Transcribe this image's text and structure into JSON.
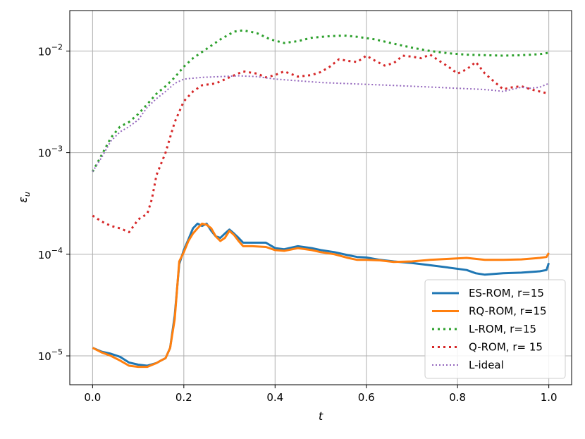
{
  "chart_data": {
    "type": "line",
    "xlabel": "t",
    "ylabel": "ε",
    "ylabel_sub": "u",
    "xlim": [
      -0.05,
      1.05
    ],
    "ylim": [
      5.2e-06,
      0.025
    ],
    "yscale": "log",
    "grid": true,
    "legend_position": "lower-right",
    "x_ticks": [
      {
        "value": 0.0,
        "label": "0.0"
      },
      {
        "value": 0.2,
        "label": "0.2"
      },
      {
        "value": 0.4,
        "label": "0.4"
      },
      {
        "value": 0.6,
        "label": "0.6"
      },
      {
        "value": 0.8,
        "label": "0.8"
      },
      {
        "value": 1.0,
        "label": "1.0"
      }
    ],
    "y_ticks": [
      {
        "value": 1e-05,
        "base": "10",
        "exp": "−5"
      },
      {
        "value": 0.0001,
        "base": "10",
        "exp": "−4"
      },
      {
        "value": 0.001,
        "base": "10",
        "exp": "−3"
      },
      {
        "value": 0.01,
        "base": "10",
        "exp": "−2"
      }
    ],
    "series": [
      {
        "name": "ES-ROM, r=15",
        "color": "#1f77b4",
        "style": "solid",
        "points": [
          [
            0.0,
            1.2e-05
          ],
          [
            0.02,
            1.1e-05
          ],
          [
            0.04,
            1.05e-05
          ],
          [
            0.06,
            9.8e-06
          ],
          [
            0.08,
            8.6e-06
          ],
          [
            0.1,
            8.2e-06
          ],
          [
            0.12,
            8e-06
          ],
          [
            0.14,
            8.5e-06
          ],
          [
            0.15,
            9e-06
          ],
          [
            0.16,
            9.5e-06
          ],
          [
            0.17,
            1.2e-05
          ],
          [
            0.18,
            2.5e-05
          ],
          [
            0.19,
            8e-05
          ],
          [
            0.2,
            0.00011
          ],
          [
            0.21,
            0.00014
          ],
          [
            0.22,
            0.00018
          ],
          [
            0.23,
            0.0002
          ],
          [
            0.24,
            0.00019
          ],
          [
            0.25,
            0.0002
          ],
          [
            0.26,
            0.00017
          ],
          [
            0.27,
            0.00015
          ],
          [
            0.28,
            0.000145
          ],
          [
            0.29,
            0.00016
          ],
          [
            0.3,
            0.000175
          ],
          [
            0.31,
            0.00016
          ],
          [
            0.32,
            0.000145
          ],
          [
            0.33,
            0.00013
          ],
          [
            0.35,
            0.00013
          ],
          [
            0.38,
            0.00013
          ],
          [
            0.4,
            0.000115
          ],
          [
            0.42,
            0.000112
          ],
          [
            0.45,
            0.00012
          ],
          [
            0.48,
            0.000115
          ],
          [
            0.5,
            0.00011
          ],
          [
            0.53,
            0.000105
          ],
          [
            0.56,
            9.8e-05
          ],
          [
            0.58,
            9.4e-05
          ],
          [
            0.6,
            9.3e-05
          ],
          [
            0.63,
            8.8e-05
          ],
          [
            0.66,
            8.5e-05
          ],
          [
            0.7,
            8.2e-05
          ],
          [
            0.74,
            7.8e-05
          ],
          [
            0.78,
            7.4e-05
          ],
          [
            0.82,
            7e-05
          ],
          [
            0.84,
            6.5e-05
          ],
          [
            0.86,
            6.3e-05
          ],
          [
            0.9,
            6.5e-05
          ],
          [
            0.94,
            6.6e-05
          ],
          [
            0.98,
            6.8e-05
          ],
          [
            0.995,
            7e-05
          ],
          [
            1.0,
            8.2e-05
          ]
        ]
      },
      {
        "name": "RQ-ROM, r=15",
        "color": "#ff7f0e",
        "style": "solid",
        "points": [
          [
            0.0,
            1.2e-05
          ],
          [
            0.02,
            1.08e-05
          ],
          [
            0.04,
            1e-05
          ],
          [
            0.06,
            9e-06
          ],
          [
            0.08,
            8e-06
          ],
          [
            0.1,
            7.8e-06
          ],
          [
            0.12,
            7.8e-06
          ],
          [
            0.14,
            8.5e-06
          ],
          [
            0.15,
            9e-06
          ],
          [
            0.16,
            9.5e-06
          ],
          [
            0.17,
            1.2e-05
          ],
          [
            0.18,
            2.3e-05
          ],
          [
            0.19,
            8.5e-05
          ],
          [
            0.2,
            0.000105
          ],
          [
            0.21,
            0.000135
          ],
          [
            0.22,
            0.00016
          ],
          [
            0.23,
            0.00018
          ],
          [
            0.24,
            0.0002
          ],
          [
            0.25,
            0.000195
          ],
          [
            0.26,
            0.00018
          ],
          [
            0.27,
            0.00015
          ],
          [
            0.28,
            0.000135
          ],
          [
            0.29,
            0.000145
          ],
          [
            0.3,
            0.00017
          ],
          [
            0.31,
            0.000155
          ],
          [
            0.32,
            0.000135
          ],
          [
            0.33,
            0.00012
          ],
          [
            0.35,
            0.00012
          ],
          [
            0.38,
            0.000118
          ],
          [
            0.4,
            0.00011
          ],
          [
            0.42,
            0.000108
          ],
          [
            0.45,
            0.000115
          ],
          [
            0.48,
            0.00011
          ],
          [
            0.5,
            0.000105
          ],
          [
            0.53,
            0.0001
          ],
          [
            0.56,
            9.2e-05
          ],
          [
            0.58,
            8.8e-05
          ],
          [
            0.6,
            8.8e-05
          ],
          [
            0.63,
            8.7e-05
          ],
          [
            0.66,
            8.4e-05
          ],
          [
            0.7,
            8.5e-05
          ],
          [
            0.74,
            8.8e-05
          ],
          [
            0.78,
            9e-05
          ],
          [
            0.82,
            9.2e-05
          ],
          [
            0.86,
            8.8e-05
          ],
          [
            0.9,
            8.8e-05
          ],
          [
            0.94,
            8.9e-05
          ],
          [
            0.98,
            9.2e-05
          ],
          [
            0.995,
            9.4e-05
          ],
          [
            1.0,
            0.000103
          ]
        ]
      },
      {
        "name": "L-ROM, r=15",
        "color": "#2ca02c",
        "style": "dotted",
        "points": [
          [
            0.0,
            0.00065
          ],
          [
            0.02,
            0.00095
          ],
          [
            0.04,
            0.0014
          ],
          [
            0.06,
            0.0018
          ],
          [
            0.08,
            0.002
          ],
          [
            0.1,
            0.0024
          ],
          [
            0.12,
            0.003
          ],
          [
            0.14,
            0.0038
          ],
          [
            0.16,
            0.0045
          ],
          [
            0.18,
            0.0055
          ],
          [
            0.2,
            0.007
          ],
          [
            0.22,
            0.0085
          ],
          [
            0.25,
            0.0105
          ],
          [
            0.28,
            0.013
          ],
          [
            0.31,
            0.0155
          ],
          [
            0.33,
            0.016
          ],
          [
            0.36,
            0.015
          ],
          [
            0.39,
            0.013
          ],
          [
            0.42,
            0.012
          ],
          [
            0.45,
            0.0125
          ],
          [
            0.48,
            0.0135
          ],
          [
            0.52,
            0.014
          ],
          [
            0.55,
            0.0142
          ],
          [
            0.58,
            0.0138
          ],
          [
            0.62,
            0.013
          ],
          [
            0.66,
            0.0118
          ],
          [
            0.7,
            0.0108
          ],
          [
            0.74,
            0.01
          ],
          [
            0.78,
            0.0095
          ],
          [
            0.82,
            0.0092
          ],
          [
            0.86,
            0.0091
          ],
          [
            0.9,
            0.009
          ],
          [
            0.94,
            0.0091
          ],
          [
            0.98,
            0.0093
          ],
          [
            1.0,
            0.0096
          ]
        ]
      },
      {
        "name": "Q-ROM, r= 15",
        "color": "#d62728",
        "style": "dotted",
        "points": [
          [
            0.0,
            0.00024
          ],
          [
            0.02,
            0.00021
          ],
          [
            0.04,
            0.00019
          ],
          [
            0.06,
            0.00018
          ],
          [
            0.08,
            0.000165
          ],
          [
            0.09,
            0.00019
          ],
          [
            0.1,
            0.00022
          ],
          [
            0.12,
            0.00025
          ],
          [
            0.13,
            0.00035
          ],
          [
            0.14,
            0.0006
          ],
          [
            0.16,
            0.001
          ],
          [
            0.18,
            0.002
          ],
          [
            0.2,
            0.0032
          ],
          [
            0.22,
            0.004
          ],
          [
            0.24,
            0.0046
          ],
          [
            0.27,
            0.0048
          ],
          [
            0.3,
            0.0055
          ],
          [
            0.33,
            0.0063
          ],
          [
            0.36,
            0.006
          ],
          [
            0.38,
            0.0055
          ],
          [
            0.4,
            0.0058
          ],
          [
            0.42,
            0.0063
          ],
          [
            0.45,
            0.0056
          ],
          [
            0.48,
            0.0058
          ],
          [
            0.5,
            0.0062
          ],
          [
            0.52,
            0.007
          ],
          [
            0.54,
            0.0083
          ],
          [
            0.56,
            0.008
          ],
          [
            0.58,
            0.0078
          ],
          [
            0.6,
            0.009
          ],
          [
            0.62,
            0.008
          ],
          [
            0.64,
            0.0072
          ],
          [
            0.66,
            0.0076
          ],
          [
            0.68,
            0.009
          ],
          [
            0.7,
            0.0088
          ],
          [
            0.72,
            0.0085
          ],
          [
            0.74,
            0.0092
          ],
          [
            0.76,
            0.008
          ],
          [
            0.78,
            0.007
          ],
          [
            0.8,
            0.006
          ],
          [
            0.82,
            0.0066
          ],
          [
            0.84,
            0.0078
          ],
          [
            0.86,
            0.006
          ],
          [
            0.88,
            0.005
          ],
          [
            0.9,
            0.0042
          ],
          [
            0.92,
            0.0044
          ],
          [
            0.94,
            0.0045
          ],
          [
            0.96,
            0.0042
          ],
          [
            0.98,
            0.004
          ],
          [
            1.0,
            0.0038
          ]
        ]
      },
      {
        "name": "L-ideal",
        "color": "#9467bd",
        "style": "dotted",
        "points": [
          [
            0.0,
            0.00065
          ],
          [
            0.02,
            0.0009
          ],
          [
            0.04,
            0.0013
          ],
          [
            0.06,
            0.0016
          ],
          [
            0.08,
            0.0018
          ],
          [
            0.1,
            0.0021
          ],
          [
            0.12,
            0.0028
          ],
          [
            0.14,
            0.0034
          ],
          [
            0.16,
            0.004
          ],
          [
            0.18,
            0.0048
          ],
          [
            0.2,
            0.0053
          ],
          [
            0.24,
            0.0055
          ],
          [
            0.28,
            0.0056
          ],
          [
            0.32,
            0.0057
          ],
          [
            0.36,
            0.0056
          ],
          [
            0.4,
            0.0053
          ],
          [
            0.45,
            0.0051
          ],
          [
            0.5,
            0.0049
          ],
          [
            0.55,
            0.0048
          ],
          [
            0.6,
            0.0047
          ],
          [
            0.65,
            0.0046
          ],
          [
            0.7,
            0.0045
          ],
          [
            0.75,
            0.0044
          ],
          [
            0.8,
            0.0043
          ],
          [
            0.85,
            0.0042
          ],
          [
            0.88,
            0.0041
          ],
          [
            0.9,
            0.004
          ],
          [
            0.92,
            0.0042
          ],
          [
            0.94,
            0.0044
          ],
          [
            0.96,
            0.0043
          ],
          [
            0.98,
            0.0044
          ],
          [
            1.0,
            0.0048
          ]
        ]
      }
    ]
  }
}
